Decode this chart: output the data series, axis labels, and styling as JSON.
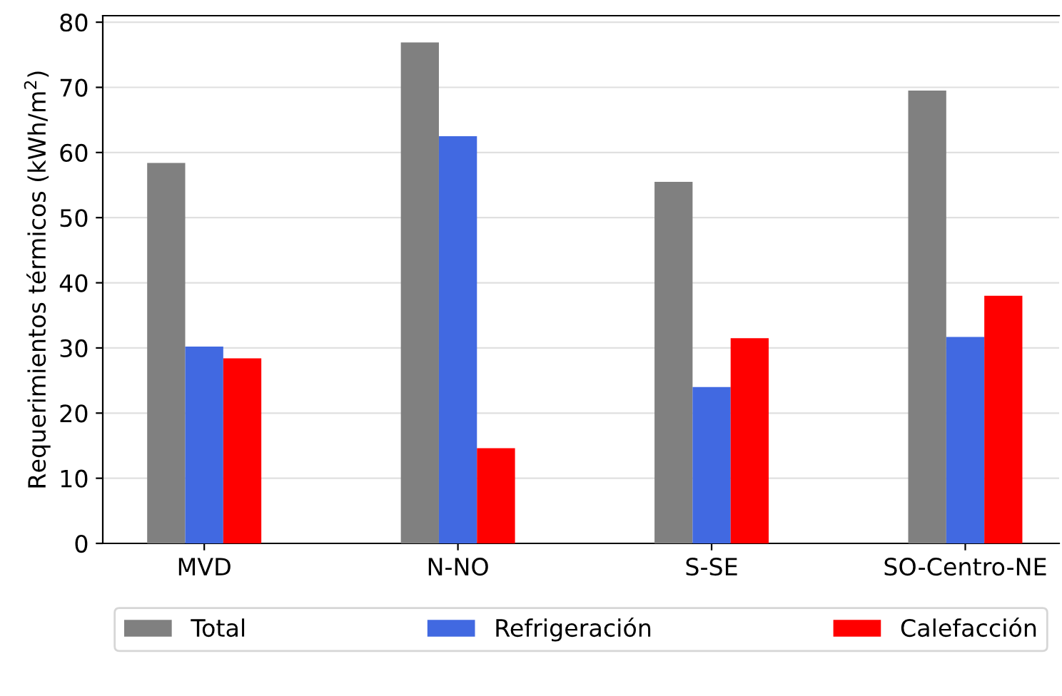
{
  "chart_data": {
    "type": "bar",
    "ylabel": "Requerimientos térmicos (kWh/m$^{2}$)",
    "categories": [
      "MVD",
      "N-NO",
      "S-SE",
      "SO-Centro-NE"
    ],
    "series": [
      {
        "name": "Total",
        "color": "#808080",
        "values": [
          58.4,
          76.9,
          55.5,
          69.5
        ]
      },
      {
        "name": "Refrigeración",
        "color": "#4169e1",
        "values": [
          30.2,
          62.5,
          24.0,
          31.7
        ]
      },
      {
        "name": "Calefacción",
        "color": "#ff0000",
        "values": [
          28.4,
          14.6,
          31.5,
          38.0
        ]
      }
    ],
    "ylim": [
      0,
      81
    ],
    "yticks": [
      0,
      10,
      20,
      30,
      40,
      50,
      60,
      70,
      80
    ],
    "grid": "y",
    "legend": "bottom"
  }
}
